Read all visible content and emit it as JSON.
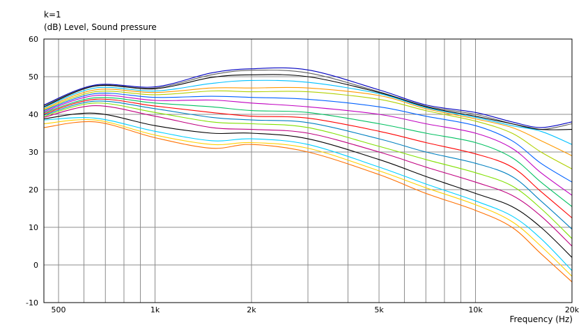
{
  "header": {
    "k_label": "k=1",
    "unit_label": "(dB)  Level, Sound pressure"
  },
  "chart_data": {
    "type": "line",
    "xscale": "log",
    "xlim": [
      450,
      20000
    ],
    "ylim": [
      -10,
      60
    ],
    "grid": true,
    "xlabel": "Frequency  (Hz)",
    "x_ticks": [
      {
        "value": 500,
        "label": "500"
      },
      {
        "value": 1000,
        "label": "1k"
      },
      {
        "value": 2000,
        "label": "2k"
      },
      {
        "value": 5000,
        "label": "5k"
      },
      {
        "value": 10000,
        "label": "10k"
      },
      {
        "value": 20000,
        "label": "20k"
      }
    ],
    "y_ticks": [
      60,
      50,
      40,
      30,
      20,
      10,
      0,
      -10
    ],
    "x": [
      450,
      650,
      1000,
      1500,
      2000,
      3000,
      5000,
      7000,
      10000,
      13000,
      16000,
      20000
    ],
    "series": [
      {
        "color": "#0000c0",
        "values": [
          42.5,
          47.8,
          47.3,
          51.0,
          52.1,
          51.8,
          46.5,
          42.5,
          40.5,
          38.0,
          36.5,
          38.0
        ]
      },
      {
        "color": "#606060",
        "values": [
          42.3,
          47.6,
          47.0,
          50.5,
          51.7,
          51.0,
          46.0,
          42.2,
          40.0,
          37.5,
          36.0,
          37.5
        ]
      },
      {
        "color": "#000000",
        "values": [
          42.0,
          47.5,
          46.8,
          49.8,
          50.5,
          50.0,
          45.8,
          42.0,
          39.5,
          37.5,
          36.0,
          36.0
        ]
      },
      {
        "color": "#00c0ff",
        "values": [
          41.8,
          47.0,
          46.2,
          48.2,
          49.0,
          48.5,
          45.5,
          41.8,
          39.2,
          37.0,
          35.5,
          32.0
        ]
      },
      {
        "color": "#ff9900",
        "values": [
          41.5,
          46.5,
          45.8,
          47.0,
          47.0,
          47.0,
          45.0,
          41.5,
          38.8,
          36.5,
          33.0,
          29.0
        ]
      },
      {
        "color": "#b0d000",
        "values": [
          41.2,
          46.0,
          45.2,
          46.2,
          46.0,
          46.0,
          44.0,
          41.0,
          38.2,
          35.0,
          30.0,
          25.5
        ]
      },
      {
        "color": "#0060ff",
        "values": [
          41.0,
          45.5,
          44.5,
          44.8,
          44.5,
          44.0,
          42.0,
          39.5,
          37.0,
          33.0,
          27.0,
          22.0
        ]
      },
      {
        "color": "#c000c0",
        "values": [
          40.7,
          45.0,
          43.7,
          43.8,
          43.0,
          42.0,
          40.0,
          37.5,
          35.0,
          31.0,
          24.5,
          18.5
        ]
      },
      {
        "color": "#00c060",
        "values": [
          40.4,
          44.4,
          43.0,
          42.0,
          41.0,
          40.5,
          37.5,
          35.0,
          32.5,
          28.5,
          22.0,
          15.5
        ]
      },
      {
        "color": "#ff0000",
        "values": [
          40.1,
          44.0,
          42.2,
          40.5,
          39.5,
          39.0,
          35.5,
          32.5,
          29.5,
          26.0,
          19.5,
          12.5
        ]
      },
      {
        "color": "#0080c0",
        "values": [
          39.8,
          43.5,
          41.5,
          39.2,
          38.5,
          37.8,
          33.5,
          30.0,
          27.0,
          23.5,
          17.0,
          9.5
        ]
      },
      {
        "color": "#80e000",
        "values": [
          39.5,
          43.0,
          40.5,
          38.0,
          37.5,
          36.5,
          31.5,
          28.0,
          24.5,
          21.0,
          15.0,
          7.0
        ]
      },
      {
        "color": "#c00080",
        "values": [
          39.2,
          42.3,
          39.5,
          36.5,
          36.0,
          35.0,
          30.0,
          26.0,
          22.0,
          18.5,
          13.0,
          5.0
        ]
      },
      {
        "color": "#000000",
        "values": [
          38.8,
          40.3,
          37.0,
          35.0,
          35.0,
          33.5,
          28.0,
          23.5,
          19.0,
          15.5,
          10.0,
          2.0
        ]
      },
      {
        "color": "#00d0ff",
        "values": [
          38.5,
          39.0,
          35.5,
          33.0,
          33.5,
          32.0,
          26.0,
          21.5,
          17.0,
          13.0,
          7.0,
          -1.5
        ]
      },
      {
        "color": "#ffd000",
        "values": [
          37.5,
          38.5,
          34.5,
          32.0,
          32.5,
          31.0,
          25.0,
          20.5,
          16.0,
          11.5,
          5.0,
          -3.0
        ]
      },
      {
        "color": "#ff7000",
        "values": [
          36.5,
          38.0,
          33.8,
          31.0,
          32.0,
          30.0,
          24.0,
          19.0,
          14.5,
          10.0,
          3.0,
          -4.5
        ]
      }
    ]
  }
}
